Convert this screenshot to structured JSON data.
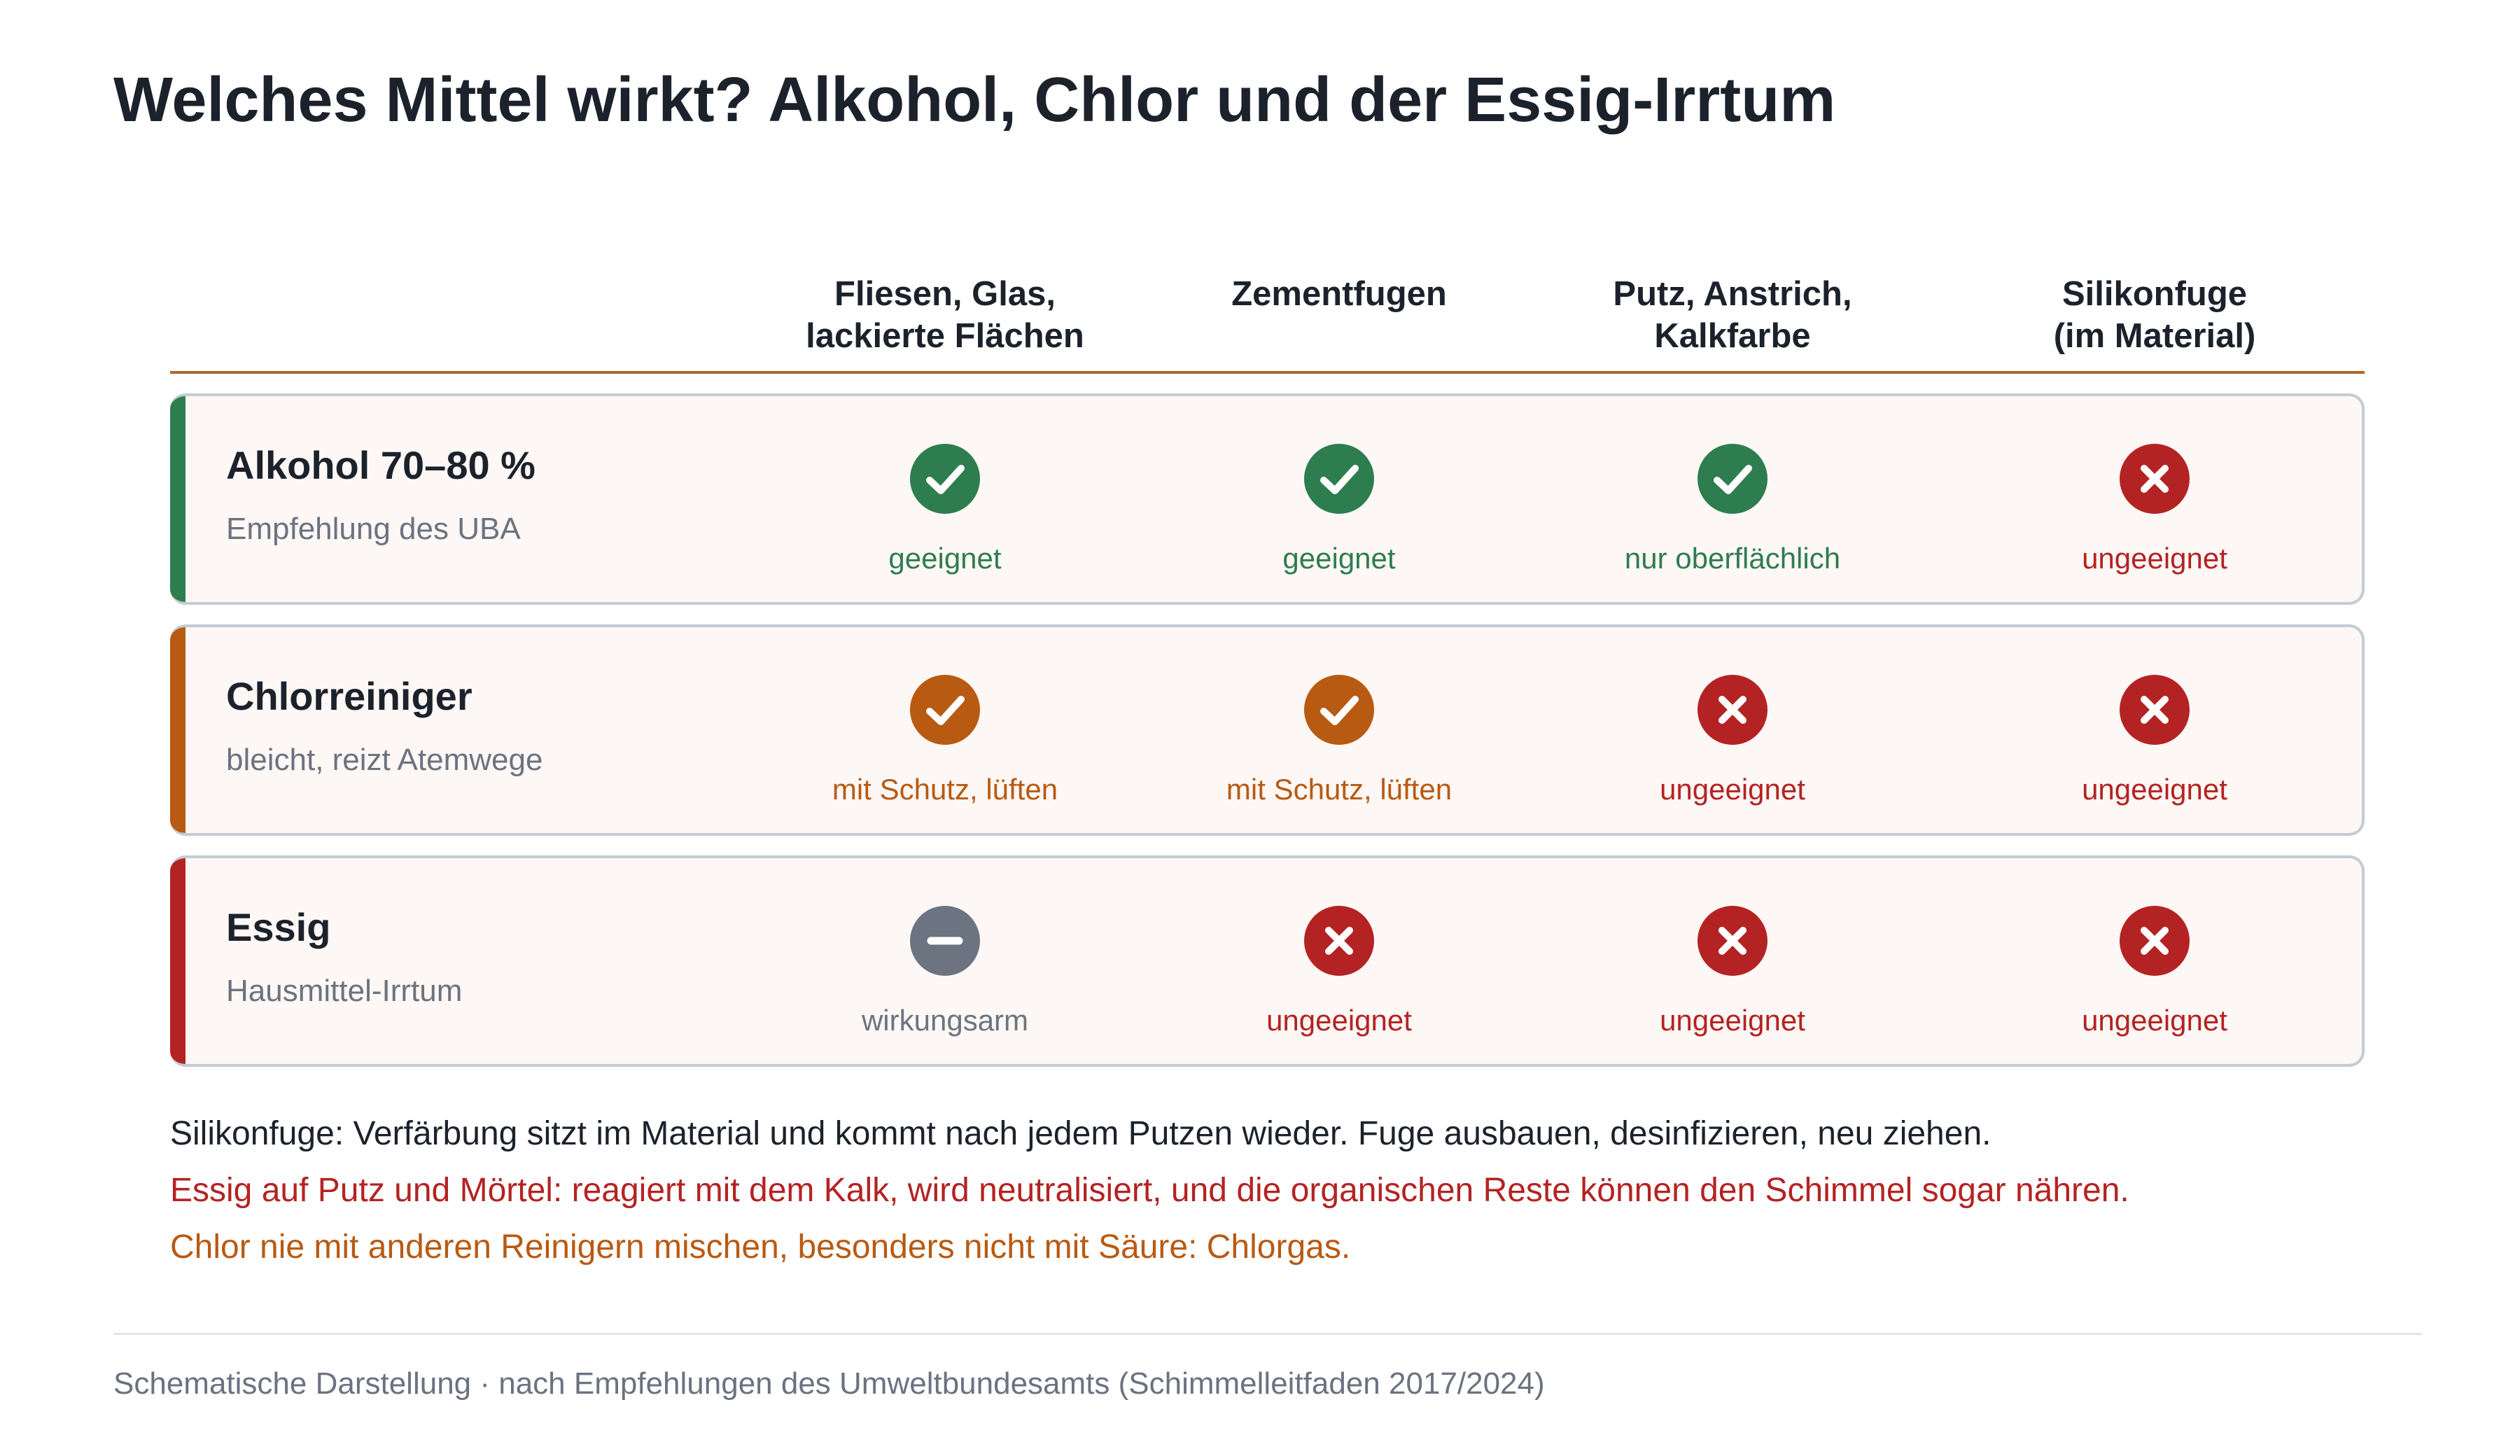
{
  "title": "Welches Mittel wirkt? Alkohol, Chlor und der Essig-Irrtum",
  "columns": [
    {
      "line1": "Fliesen, Glas,",
      "line2": "lackierte Flächen"
    },
    {
      "line1": "Zementfugen",
      "line2": ""
    },
    {
      "line1": "Putz, Anstrich,",
      "line2": "Kalkfarbe"
    },
    {
      "line1": "Silikonfuge",
      "line2": "(im Material)"
    }
  ],
  "colors": {
    "green": "#2e7d4f",
    "orange": "#b85a12",
    "red": "#b42323",
    "gray": "#6b7480",
    "rule": "#b06a2c"
  },
  "rows": [
    {
      "label": "Alkohol 70–80 %",
      "sub": "Empfehlung des UBA",
      "accent": "#2e7d4f",
      "cells": [
        {
          "icon": "check-icon",
          "status": "green",
          "text": "geeignet"
        },
        {
          "icon": "check-icon",
          "status": "green",
          "text": "geeignet"
        },
        {
          "icon": "check-icon",
          "status": "green",
          "text": "nur oberflächlich"
        },
        {
          "icon": "cross-icon",
          "status": "red",
          "text": "ungeeignet"
        }
      ]
    },
    {
      "label": "Chlorreiniger",
      "sub": "bleicht, reizt Atemwege",
      "accent": "#b85a12",
      "cells": [
        {
          "icon": "check-icon",
          "status": "orange",
          "text": "mit Schutz, lüften"
        },
        {
          "icon": "check-icon",
          "status": "orange",
          "text": "mit Schutz, lüften"
        },
        {
          "icon": "cross-icon",
          "status": "red",
          "text": "ungeeignet"
        },
        {
          "icon": "cross-icon",
          "status": "red",
          "text": "ungeeignet"
        }
      ]
    },
    {
      "label": "Essig",
      "sub": "Hausmittel-Irrtum",
      "accent": "#b42323",
      "cells": [
        {
          "icon": "minus-icon",
          "status": "gray",
          "text": "wirkungsarm"
        },
        {
          "icon": "cross-icon",
          "status": "red",
          "text": "ungeeignet"
        },
        {
          "icon": "cross-icon",
          "status": "red",
          "text": "ungeeignet"
        },
        {
          "icon": "cross-icon",
          "status": "red",
          "text": "ungeeignet"
        }
      ]
    }
  ],
  "notes": [
    {
      "text": "Silikonfuge: Verfärbung sitzt im Material und kommt nach jedem Putzen wieder. Fuge ausbauen, desinfizieren, neu ziehen.",
      "color": "#1c222b"
    },
    {
      "text": "Essig auf Putz und Mörtel: reagiert mit dem Kalk, wird neutralisiert, und die organischen Reste können den Schimmel sogar nähren.",
      "color": "#b42323"
    },
    {
      "text": "Chlor nie mit anderen Reinigern mischen, besonders nicht mit Säure: Chlorgas.",
      "color": "#b85a12"
    }
  ],
  "source": "Schematische Darstellung · nach Empfehlungen des Umweltbundesamts (Schimmelleitfaden 2017/2024)"
}
